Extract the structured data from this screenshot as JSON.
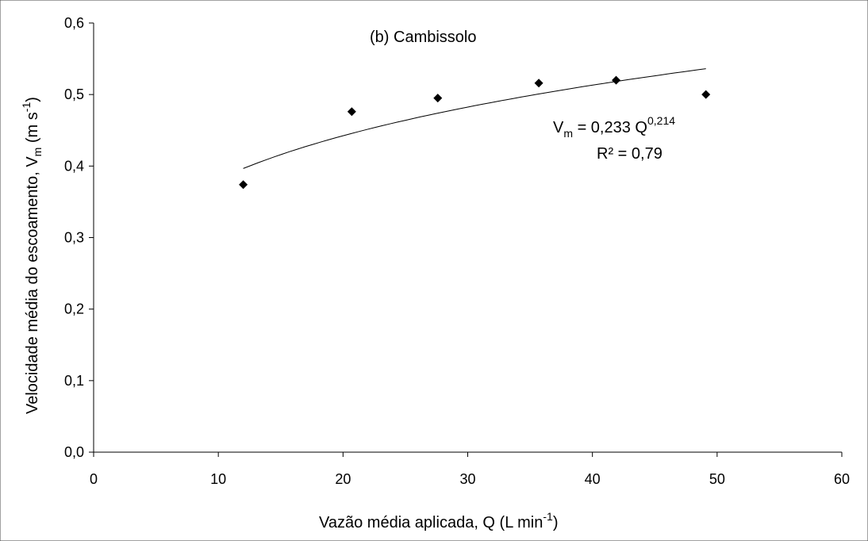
{
  "chart_data": {
    "type": "scatter",
    "title": "(b) Cambissolo",
    "xlabel": {
      "main": "Vazão média aplicada, Q (L min",
      "sup": "-1",
      "close": ")"
    },
    "ylabel": {
      "pre": "Velocidade média do escoamento, V",
      "sub": "m",
      "mid": " (m s",
      "sup": "-1",
      "close": ")"
    },
    "xlim": [
      0,
      60
    ],
    "ylim": [
      0,
      0.6
    ],
    "x_ticks": [
      0,
      10,
      20,
      30,
      40,
      50,
      60
    ],
    "x_tick_labels": [
      "0",
      "10",
      "20",
      "30",
      "40",
      "50",
      "60"
    ],
    "y_ticks": [
      0,
      0.1,
      0.2,
      0.3,
      0.4,
      0.5,
      0.6
    ],
    "y_tick_labels": [
      "0,0",
      "0,1",
      "0,2",
      "0,3",
      "0,4",
      "0,5",
      "0,6"
    ],
    "grid": false,
    "legend": "none",
    "marker": "diamond",
    "marker_color": "#000000",
    "line_color": "#000000",
    "points": [
      {
        "x": 12.0,
        "y": 0.374
      },
      {
        "x": 20.7,
        "y": 0.476
      },
      {
        "x": 27.6,
        "y": 0.495
      },
      {
        "x": 35.7,
        "y": 0.516
      },
      {
        "x": 41.9,
        "y": 0.52
      },
      {
        "x": 49.1,
        "y": 0.5
      }
    ],
    "trendline": {
      "type": "power",
      "coefficient": 0.233,
      "exponent": 0.214,
      "x_range": [
        12.0,
        49.1
      ]
    },
    "annotations": {
      "equation": {
        "V": "V",
        "sub": "m",
        "rest": " = 0,233 Q",
        "sup": "0,214"
      },
      "r2": "R² = 0,79"
    }
  }
}
